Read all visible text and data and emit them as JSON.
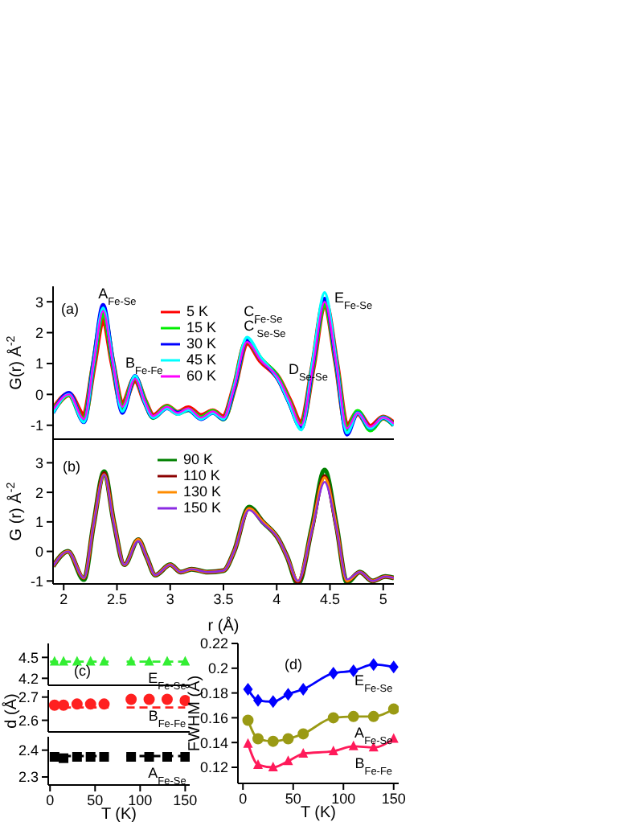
{
  "chart_data": [
    {
      "type": "line",
      "ylabel": "G(r) Å$^{-2}$",
      "x": [
        1.9,
        2.05,
        2.19,
        2.28,
        2.37,
        2.46,
        2.55,
        2.67,
        2.76,
        2.84,
        2.97,
        3.07,
        3.17,
        3.29,
        3.4,
        3.5,
        3.6,
        3.72,
        3.85,
        4.02,
        4.12,
        4.23,
        4.34,
        4.45,
        4.56,
        4.66,
        4.76,
        4.88,
        5.0,
        5.1
      ],
      "series": [
        {
          "name": "5 K",
          "color": "#ff0000",
          "values": [
            -0.5,
            0.0,
            -0.7,
            0.9,
            2.5,
            1.0,
            -0.35,
            0.5,
            -0.2,
            -0.7,
            -0.4,
            -0.6,
            -0.45,
            -0.7,
            -0.55,
            -0.75,
            0.2,
            1.7,
            1.1,
            0.5,
            -0.2,
            -0.95,
            0.9,
            3.0,
            1.0,
            -1.05,
            -0.6,
            -1.05,
            -0.75,
            -0.95
          ]
        },
        {
          "name": "15 K",
          "color": "#00ee00",
          "values": [
            -0.55,
            0.0,
            -0.85,
            1.0,
            2.7,
            1.05,
            -0.45,
            0.55,
            -0.2,
            -0.75,
            -0.4,
            -0.6,
            -0.5,
            -0.75,
            -0.55,
            -0.8,
            0.2,
            1.75,
            1.15,
            0.5,
            -0.25,
            -1.05,
            0.95,
            3.0,
            1.0,
            -1.15,
            -0.55,
            -1.15,
            -0.75,
            -1.0
          ]
        },
        {
          "name": "30 K",
          "color": "#0000ff",
          "values": [
            -0.6,
            0.05,
            -0.9,
            1.05,
            2.9,
            1.1,
            -0.6,
            0.6,
            -0.25,
            -0.75,
            -0.45,
            -0.6,
            -0.5,
            -0.8,
            -0.6,
            -0.8,
            0.2,
            1.75,
            1.15,
            0.45,
            -0.3,
            -1.1,
            1.0,
            3.1,
            1.0,
            -1.3,
            -0.6,
            -1.1,
            -0.75,
            -1.0
          ]
        },
        {
          "name": "45 K",
          "color": "#00ffff",
          "values": [
            -0.6,
            0.0,
            -0.9,
            1.0,
            2.8,
            1.1,
            -0.55,
            0.6,
            -0.25,
            -0.75,
            -0.45,
            -0.65,
            -0.5,
            -0.8,
            -0.6,
            -0.8,
            0.25,
            1.85,
            1.2,
            0.45,
            -0.3,
            -1.15,
            1.1,
            3.3,
            1.05,
            -1.25,
            -0.6,
            -1.1,
            -0.75,
            -1.0
          ]
        },
        {
          "name": "60 K",
          "color": "#ff00ff",
          "values": [
            -0.5,
            0.0,
            -0.8,
            1.0,
            2.7,
            1.05,
            -0.4,
            0.5,
            -0.2,
            -0.7,
            -0.4,
            -0.6,
            -0.45,
            -0.75,
            -0.55,
            -0.75,
            0.2,
            1.7,
            1.1,
            0.5,
            -0.2,
            -1.0,
            0.9,
            3.0,
            1.0,
            -1.1,
            -0.6,
            -1.05,
            -0.75,
            -0.95
          ]
        }
      ],
      "xlim": [
        1.9,
        5.1
      ],
      "xticks": [
        2,
        2.5,
        3,
        3.5,
        4,
        4.5,
        5
      ],
      "ylim": [
        -1.45,
        3.5
      ],
      "yticks": [
        -1,
        0,
        1,
        2,
        3
      ],
      "tick_labels": "y",
      "legend": "top",
      "marker": "none",
      "line_style": "solid",
      "annotations": [
        "(a)",
        {
          "text": "A$_{Fe-Se}$",
          "x": 2.37,
          "y": 2.9
        },
        {
          "text": "B$_{Fe-Fe}$",
          "x": 2.67,
          "y": 0.6
        },
        {
          "text": "C$_{Fe-Se}$",
          "x": 3.72,
          "y": 1.85
        },
        {
          "text": "C'$_{Se-Se}$",
          "x": 3.72,
          "y": 1.85
        },
        {
          "text": "D$_{Se-Se}$",
          "x": 4.02,
          "y": 0.5
        },
        {
          "text": "E$_{Fe-Se}$",
          "x": 4.45,
          "y": 3.3
        }
      ]
    },
    {
      "type": "line",
      "xlabel": "r (Å)",
      "ylabel": "G (r) Å$^{-2}$",
      "x": [
        1.9,
        2.04,
        2.19,
        2.28,
        2.38,
        2.47,
        2.57,
        2.7,
        2.78,
        2.86,
        3.0,
        3.1,
        3.2,
        3.35,
        3.5,
        3.6,
        3.74,
        3.87,
        4.02,
        4.1,
        4.2,
        4.33,
        4.45,
        4.56,
        4.66,
        4.78,
        4.9,
        5.02,
        5.1
      ],
      "series": [
        {
          "name": "90 K",
          "color": "#008000",
          "values": [
            -0.5,
            0.0,
            -0.95,
            0.9,
            2.7,
            1.0,
            -0.45,
            0.4,
            -0.2,
            -0.8,
            -0.45,
            -0.7,
            -0.6,
            -0.7,
            -0.65,
            0.0,
            1.5,
            1.0,
            0.4,
            -0.2,
            -1.1,
            0.8,
            2.75,
            0.9,
            -1.05,
            -0.7,
            -1.0,
            -0.85,
            -0.9
          ]
        },
        {
          "name": "110 K",
          "color": "#8b0000",
          "values": [
            -0.5,
            0.0,
            -0.9,
            0.9,
            2.65,
            1.0,
            -0.45,
            0.4,
            -0.2,
            -0.8,
            -0.45,
            -0.7,
            -0.6,
            -0.7,
            -0.65,
            0.0,
            1.45,
            1.0,
            0.4,
            -0.2,
            -1.05,
            0.75,
            2.55,
            0.85,
            -1.0,
            -0.7,
            -1.0,
            -0.85,
            -0.9
          ]
        },
        {
          "name": "130 K",
          "color": "#ff8c00",
          "values": [
            -0.5,
            0.0,
            -0.9,
            0.9,
            2.6,
            1.0,
            -0.45,
            0.4,
            -0.2,
            -0.8,
            -0.45,
            -0.7,
            -0.6,
            -0.7,
            -0.65,
            0.0,
            1.45,
            1.0,
            0.4,
            -0.2,
            -1.0,
            0.75,
            2.5,
            0.85,
            -1.0,
            -0.7,
            -1.0,
            -0.85,
            -0.9
          ]
        },
        {
          "name": "150 K",
          "color": "#8a2be2",
          "values": [
            -0.5,
            0.0,
            -0.9,
            0.9,
            2.6,
            0.95,
            -0.45,
            0.35,
            -0.2,
            -0.8,
            -0.45,
            -0.7,
            -0.6,
            -0.7,
            -0.65,
            0.0,
            1.4,
            0.95,
            0.4,
            -0.2,
            -1.0,
            0.7,
            2.35,
            0.8,
            -0.95,
            -0.7,
            -1.0,
            -0.85,
            -0.9
          ]
        }
      ],
      "xlim": [
        1.9,
        5.1
      ],
      "xticks": [
        2,
        2.5,
        3,
        3.5,
        4,
        4.5,
        5
      ],
      "ylim": [
        -1.1,
        3.8
      ],
      "yticks": [
        -1,
        0,
        1,
        2,
        3
      ],
      "legend": "top",
      "marker": "none",
      "line_style": "solid",
      "annotations": [
        "(b)"
      ]
    },
    {
      "type": "scatter",
      "x": [
        5,
        15,
        30,
        45,
        60,
        90,
        110,
        130,
        150
      ],
      "series": [
        {
          "type": "line",
          "x": [
            0,
            65,
            75,
            85,
            150
          ],
          "color": "#33ee33",
          "line_style": "dashed",
          "marker": "none",
          "values": [
            4.44,
            4.44,
            null,
            4.44,
            4.44
          ]
        },
        {
          "name": "E$_{Fe-Se}$",
          "color": "#33ee33",
          "marker": "triangle",
          "values": [
            4.44,
            4.44,
            4.44,
            4.44,
            4.44,
            4.44,
            4.44,
            4.44,
            4.44
          ]
        }
      ],
      "xlim": [
        -2,
        155
      ],
      "xticks": [
        0,
        50,
        100,
        150
      ],
      "ylim": [
        4.1,
        4.7
      ],
      "yticks": [
        4.2,
        4.5
      ],
      "tick_labels": "y",
      "annotations": [
        "(c)"
      ]
    },
    {
      "type": "scatter",
      "ylabel": "d (Å)",
      "x": [
        5,
        15,
        30,
        45,
        60,
        90,
        110,
        130,
        150
      ],
      "series": [
        {
          "type": "line",
          "x": [
            0,
            65,
            75,
            85,
            150
          ],
          "color": "#ff2020",
          "line_style": "dashed",
          "marker": "none",
          "values": [
            2.655,
            2.655,
            null,
            2.655,
            2.655
          ]
        },
        {
          "name": "B$_{Fe-Fe}$",
          "color": "#ff2020",
          "marker": "circle",
          "values": [
            2.665,
            2.665,
            2.67,
            2.67,
            2.67,
            2.69,
            2.69,
            2.69,
            2.685
          ]
        }
      ],
      "xlim": [
        -2,
        155
      ],
      "xticks": [
        0,
        50,
        100,
        150
      ],
      "ylim": [
        2.55,
        2.73
      ],
      "yticks": [
        2.6,
        2.7
      ],
      "tick_labels": "y"
    },
    {
      "type": "scatter",
      "xlabel": "T (K)",
      "x": [
        5,
        15,
        30,
        45,
        60,
        90,
        110,
        130,
        150
      ],
      "series": [
        {
          "type": "line",
          "x": [
            0,
            65,
            75,
            85,
            150
          ],
          "color": "#000000",
          "line_style": "dashed",
          "marker": "none",
          "values": [
            2.378,
            2.378,
            null,
            2.378,
            2.378
          ]
        },
        {
          "name": "A$_{Fe-Se}$",
          "color": "#000000",
          "marker": "square",
          "values": [
            2.375,
            2.37,
            2.375,
            2.375,
            2.375,
            2.375,
            2.375,
            2.375,
            2.375
          ]
        }
      ],
      "xlim": [
        -2,
        155
      ],
      "xticks": [
        0,
        50,
        100,
        150
      ],
      "ylim": [
        2.27,
        2.45
      ],
      "yticks": [
        2.3,
        2.4
      ]
    },
    {
      "type": "line",
      "xlabel": "T (K)",
      "ylabel": "FWHM (Å)",
      "x": [
        5,
        15,
        30,
        45,
        60,
        90,
        110,
        130,
        150
      ],
      "series": [
        {
          "name": "E$_{Fe-Se}$",
          "color": "#0000ff",
          "marker": "diamond",
          "values": [
            0.183,
            0.174,
            0.173,
            0.179,
            0.183,
            0.196,
            0.198,
            0.203,
            0.201
          ]
        },
        {
          "name": "A$_{Fe-Se}$",
          "color": "#9a9a14",
          "marker": "circle",
          "values": [
            0.158,
            0.143,
            0.141,
            0.143,
            0.147,
            0.16,
            0.161,
            0.161,
            0.167
          ]
        },
        {
          "name": "B$_{Fe-Fe}$",
          "color": "#ff1a5a",
          "marker": "triangle",
          "values": [
            0.139,
            0.122,
            0.12,
            0.125,
            0.131,
            0.133,
            0.137,
            0.136,
            0.143
          ]
        }
      ],
      "xlim": [
        -5,
        155
      ],
      "xticks": [
        0,
        50,
        100,
        150
      ],
      "ylim": [
        0.107,
        0.22
      ],
      "yticks": [
        0.12,
        0.14,
        0.16,
        0.18,
        0.2,
        0.22
      ],
      "line_style": "solid",
      "annotations": [
        "(d)"
      ]
    }
  ]
}
